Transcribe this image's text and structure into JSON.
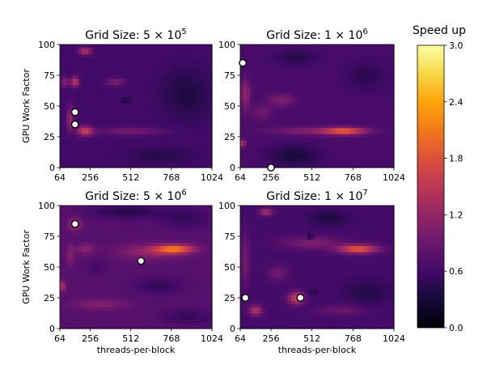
{
  "chart_data": {
    "type": "heatmap",
    "colormap": "inferno",
    "colorbar": {
      "label": "Speed up",
      "range": [
        0.0,
        3.0
      ],
      "ticks": [
        "0.0",
        "0.6",
        "1.2",
        "1.8",
        "2.4",
        "3.0"
      ]
    },
    "x_ticks": [
      "64",
      "256",
      "512",
      "768",
      "1024"
    ],
    "y_ticks": [
      "0",
      "25",
      "50",
      "75",
      "100"
    ],
    "xlim": [
      64,
      1024
    ],
    "ylim": [
      0,
      100
    ],
    "panels": [
      {
        "title_prefix": "Grid Size: 5 ×",
        "base": "10",
        "exp": "5",
        "ylabel": "GPU Work Factor",
        "xlabel": "",
        "background": 0.6,
        "blobs": [
          {
            "x": 224,
            "y": 95,
            "v": 1.45,
            "sx": 40,
            "sy": 3
          },
          {
            "x": 160,
            "y": 70,
            "v": 1.55,
            "sx": 25,
            "sy": 4
          },
          {
            "x": 416,
            "y": 70,
            "v": 1.05,
            "sx": 60,
            "sy": 3
          },
          {
            "x": 224,
            "y": 30,
            "v": 1.6,
            "sx": 50,
            "sy": 4
          },
          {
            "x": 512,
            "y": 30,
            "v": 1.0,
            "sx": 200,
            "sy": 3
          },
          {
            "x": 96,
            "y": 70,
            "v": 1.15,
            "sx": 25,
            "sy": 4
          },
          {
            "x": 128,
            "y": 40,
            "v": 1.25,
            "sx": 20,
            "sy": 10
          },
          {
            "x": 480,
            "y": 55,
            "v": 0.15,
            "sx": 30,
            "sy": 1.5
          },
          {
            "x": 864,
            "y": 60,
            "v": 0.35,
            "sx": 150,
            "sy": 20
          },
          {
            "x": 700,
            "y": 10,
            "v": 0.4,
            "sx": 200,
            "sy": 6
          }
        ],
        "markers": [
          {
            "x": 160,
            "y": 45
          },
          {
            "x": 160,
            "y": 35
          }
        ]
      },
      {
        "title_prefix": "Grid Size: 1 ×",
        "base": "10",
        "exp": "6",
        "ylabel": "",
        "xlabel": "",
        "background": 0.65,
        "blobs": [
          {
            "x": 720,
            "y": 30,
            "v": 1.8,
            "sx": 130,
            "sy": 3
          },
          {
            "x": 500,
            "y": 30,
            "v": 1.1,
            "sx": 240,
            "sy": 3
          },
          {
            "x": 96,
            "y": 60,
            "v": 1.2,
            "sx": 30,
            "sy": 12
          },
          {
            "x": 80,
            "y": 20,
            "v": 1.5,
            "sx": 18,
            "sy": 3
          },
          {
            "x": 320,
            "y": 55,
            "v": 1.05,
            "sx": 80,
            "sy": 5
          },
          {
            "x": 416,
            "y": 90,
            "v": 0.4,
            "sx": 120,
            "sy": 6
          },
          {
            "x": 850,
            "y": 75,
            "v": 0.45,
            "sx": 130,
            "sy": 12
          },
          {
            "x": 400,
            "y": 10,
            "v": 0.3,
            "sx": 150,
            "sy": 8
          },
          {
            "x": 200,
            "y": 45,
            "v": 0.95,
            "sx": 60,
            "sy": 6
          }
        ],
        "markers": [
          {
            "x": 80,
            "y": 85
          },
          {
            "x": 256,
            "y": 0
          }
        ]
      },
      {
        "title_prefix": "Grid Size: 5 ×",
        "base": "10",
        "exp": "6",
        "ylabel": "GPU Work Factor",
        "xlabel": "threads-per-block",
        "background": 0.75,
        "blobs": [
          {
            "x": 790,
            "y": 65,
            "v": 2.0,
            "sx": 120,
            "sy": 3.5
          },
          {
            "x": 640,
            "y": 63,
            "v": 1.2,
            "sx": 200,
            "sy": 6
          },
          {
            "x": 160,
            "y": 85,
            "v": 1.3,
            "sx": 40,
            "sy": 5
          },
          {
            "x": 80,
            "y": 35,
            "v": 1.5,
            "sx": 18,
            "sy": 4
          },
          {
            "x": 224,
            "y": 65,
            "v": 1.15,
            "sx": 60,
            "sy": 4
          },
          {
            "x": 480,
            "y": 95,
            "v": 0.4,
            "sx": 220,
            "sy": 5
          },
          {
            "x": 860,
            "y": 90,
            "v": 0.5,
            "sx": 150,
            "sy": 8
          },
          {
            "x": 320,
            "y": 20,
            "v": 1.1,
            "sx": 150,
            "sy": 4
          },
          {
            "x": 680,
            "y": 35,
            "v": 0.5,
            "sx": 150,
            "sy": 6
          },
          {
            "x": 880,
            "y": 10,
            "v": 0.5,
            "sx": 150,
            "sy": 6
          },
          {
            "x": 300,
            "y": 50,
            "v": 0.6,
            "sx": 50,
            "sy": 6
          },
          {
            "x": 130,
            "y": 60,
            "v": 1.1,
            "sx": 25,
            "sy": 8
          }
        ],
        "markers": [
          {
            "x": 160,
            "y": 85
          },
          {
            "x": 576,
            "y": 55
          }
        ]
      },
      {
        "title_prefix": "Grid Size: 1 ×",
        "base": "10",
        "exp": "7",
        "ylabel": "",
        "xlabel": "threads-per-block",
        "background": 0.62,
        "blobs": [
          {
            "x": 800,
            "y": 65,
            "v": 1.9,
            "sx": 120,
            "sy": 3.5
          },
          {
            "x": 512,
            "y": 70,
            "v": 1.05,
            "sx": 180,
            "sy": 5
          },
          {
            "x": 416,
            "y": 25,
            "v": 1.6,
            "sx": 50,
            "sy": 5
          },
          {
            "x": 160,
            "y": 15,
            "v": 1.45,
            "sx": 40,
            "sy": 4
          },
          {
            "x": 224,
            "y": 95,
            "v": 1.35,
            "sx": 40,
            "sy": 3
          },
          {
            "x": 96,
            "y": 55,
            "v": 1.0,
            "sx": 25,
            "sy": 20
          },
          {
            "x": 500,
            "y": 75,
            "v": 0.1,
            "sx": 18,
            "sy": 2.5
          },
          {
            "x": 520,
            "y": 30,
            "v": 0.15,
            "sx": 40,
            "sy": 1.2
          },
          {
            "x": 620,
            "y": 90,
            "v": 0.35,
            "sx": 120,
            "sy": 6
          },
          {
            "x": 860,
            "y": 30,
            "v": 0.4,
            "sx": 150,
            "sy": 10
          },
          {
            "x": 300,
            "y": 45,
            "v": 0.95,
            "sx": 60,
            "sy": 6
          },
          {
            "x": 700,
            "y": 15,
            "v": 0.9,
            "sx": 150,
            "sy": 4
          }
        ],
        "markers": [
          {
            "x": 96,
            "y": 25
          },
          {
            "x": 440,
            "y": 25
          }
        ]
      }
    ]
  }
}
